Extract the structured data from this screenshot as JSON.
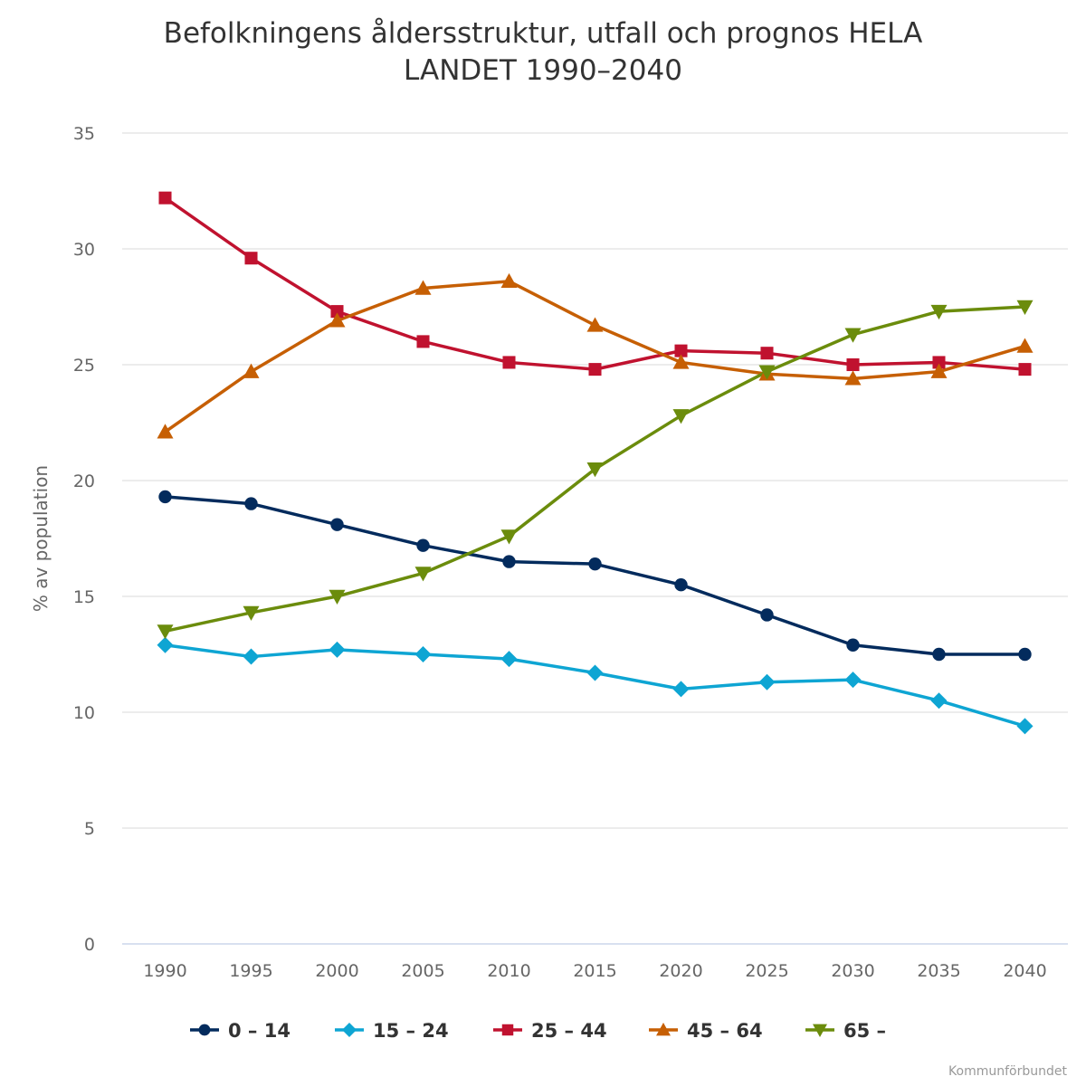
{
  "chart_data": {
    "type": "line",
    "title": "Befolkningens åldersstruktur, utfall och prognos HELA LANDET 1990-2040",
    "title_lines": [
      "Befolkningens åldersstruktur, utfall och prognos HELA",
      "LANDET 1990–2040"
    ],
    "xlabel": "",
    "ylabel": "% av population",
    "categories": [
      "1990",
      "1995",
      "2000",
      "2005",
      "2010",
      "2015",
      "2020",
      "2025",
      "2030",
      "2035",
      "2040"
    ],
    "ylim": [
      0,
      35
    ],
    "yticks": [
      0,
      5,
      10,
      15,
      20,
      25,
      30,
      35
    ],
    "grid": true,
    "legend": "bottom-center",
    "series": [
      {
        "name": "0 – 14",
        "color": "#032b5d",
        "marker": "circle",
        "values": [
          19.3,
          19.0,
          18.1,
          17.2,
          16.5,
          16.4,
          15.5,
          14.2,
          12.9,
          12.5,
          12.5
        ]
      },
      {
        "name": "15 – 24",
        "color": "#0ea5d3",
        "marker": "diamond",
        "values": [
          12.9,
          12.4,
          12.7,
          12.5,
          12.3,
          11.7,
          11.0,
          11.3,
          11.4,
          10.5,
          9.4
        ]
      },
      {
        "name": "25 – 44",
        "color": "#c0122f",
        "marker": "square",
        "values": [
          32.2,
          29.6,
          27.3,
          26.0,
          25.1,
          24.8,
          25.6,
          25.5,
          25.0,
          25.1,
          24.8
        ]
      },
      {
        "name": "45 – 64",
        "color": "#c65f04",
        "marker": "triangle",
        "values": [
          22.1,
          24.7,
          26.9,
          28.3,
          28.6,
          26.7,
          25.1,
          24.6,
          24.4,
          24.7,
          25.8
        ]
      },
      {
        "name": "65 –",
        "color": "#6b8c0c",
        "marker": "triangle-down",
        "values": [
          13.5,
          14.3,
          15.0,
          16.0,
          17.6,
          20.5,
          22.8,
          24.7,
          26.3,
          27.3,
          27.5
        ]
      }
    ],
    "credit": "Kommunförbundet"
  }
}
